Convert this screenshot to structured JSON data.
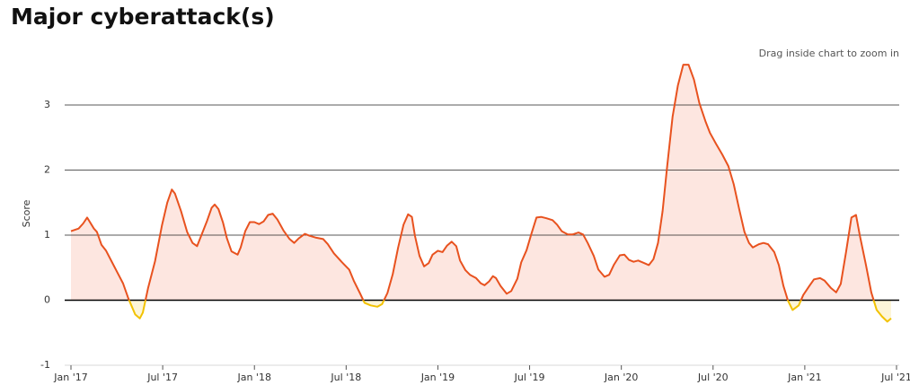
{
  "chart_data": {
    "type": "line",
    "title": "Major cyberattack(s)",
    "subtitle": "Drag inside chart to zoom in",
    "y_label": "Score",
    "color": "#e8521f",
    "negative_color": "#f2c200",
    "fill": "#fde6e0",
    "negative_fill": "#fdf5d8",
    "grid": true,
    "xlim": [
      0,
      54
    ],
    "ylim": [
      -1,
      3.8
    ],
    "xticks": [
      {
        "value": 0,
        "label": "Jan '17"
      },
      {
        "value": 6,
        "label": "Jul '17"
      },
      {
        "value": 12,
        "label": "Jan '18"
      },
      {
        "value": 18,
        "label": "Jul '18"
      },
      {
        "value": 24,
        "label": "Jan '19"
      },
      {
        "value": 30,
        "label": "Jul '19"
      },
      {
        "value": 36,
        "label": "Jan '20"
      },
      {
        "value": 42,
        "label": "Jul '20"
      },
      {
        "value": 48,
        "label": "Jan '21"
      },
      {
        "value": 54,
        "label": "Jul '21"
      }
    ],
    "yticks": [
      -1,
      0,
      1,
      2,
      3
    ],
    "x": [
      0,
      0.5,
      0.8,
      1.06,
      1.5,
      1.7,
      2,
      2.3,
      2.65,
      3,
      3.4,
      3.75,
      4.2,
      4.5,
      4.7,
      5.05,
      5.5,
      5.95,
      6.3,
      6.6,
      6.8,
      7.2,
      7.6,
      7.95,
      8.25,
      8.5,
      8.9,
      9.2,
      9.4,
      9.65,
      9.95,
      10.2,
      10.5,
      10.9,
      11.1,
      11.4,
      11.7,
      12,
      12.3,
      12.6,
      12.9,
      13.2,
      13.5,
      13.9,
      14.3,
      14.6,
      14.9,
      15.3,
      15.6,
      16.05,
      16.5,
      16.8,
      17.2,
      17.7,
      18.2,
      18.5,
      18.9,
      19.2,
      19.6,
      20.05,
      20.35,
      20.7,
      21.05,
      21.4,
      21.75,
      22.05,
      22.3,
      22.5,
      22.8,
      23.1,
      23.4,
      23.65,
      24,
      24.3,
      24.6,
      24.9,
      25.2,
      25.45,
      25.8,
      26.1,
      26.5,
      26.8,
      27.05,
      27.35,
      27.6,
      27.8,
      28.1,
      28.5,
      28.8,
      29.2,
      29.45,
      29.8,
      30.1,
      30.45,
      30.75,
      31.1,
      31.5,
      31.8,
      32.1,
      32.5,
      32.8,
      33.2,
      33.5,
      33.8,
      34.2,
      34.5,
      34.9,
      35.2,
      35.5,
      35.9,
      36.2,
      36.5,
      36.8,
      37.1,
      37.5,
      37.8,
      38.1,
      38.4,
      38.7,
      39,
      39.35,
      39.7,
      40.05,
      40.4,
      40.75,
      41.1,
      41.5,
      41.8,
      42.2,
      42.6,
      43,
      43.35,
      43.7,
      44.05,
      44.35,
      44.6,
      45,
      45.3,
      45.6,
      46,
      46.3,
      46.6,
      46.9,
      47.2,
      47.6,
      47.9,
      48.3,
      48.6,
      49,
      49.3,
      49.7,
      50.05,
      50.35,
      50.7,
      51.05,
      51.35,
      51.6,
      52,
      52.35,
      52.7,
      53.05,
      53.4,
      53.65
    ],
    "values": [
      1.06,
      1.1,
      1.18,
      1.27,
      1.1,
      1.05,
      0.85,
      0.76,
      0.6,
      0.44,
      0.26,
      0.03,
      -0.22,
      -0.28,
      -0.19,
      0.19,
      0.6,
      1.15,
      1.5,
      1.7,
      1.64,
      1.37,
      1.05,
      0.88,
      0.83,
      0.98,
      1.22,
      1.42,
      1.47,
      1.4,
      1.19,
      0.95,
      0.75,
      0.7,
      0.81,
      1.06,
      1.2,
      1.2,
      1.17,
      1.21,
      1.31,
      1.33,
      1.24,
      1.07,
      0.94,
      0.88,
      0.95,
      1.02,
      0.99,
      0.96,
      0.94,
      0.86,
      0.72,
      0.59,
      0.47,
      0.3,
      0.11,
      -0.04,
      -0.08,
      -0.1,
      -0.06,
      0.11,
      0.4,
      0.81,
      1.16,
      1.32,
      1.28,
      0.99,
      0.68,
      0.52,
      0.57,
      0.7,
      0.76,
      0.74,
      0.84,
      0.9,
      0.83,
      0.61,
      0.46,
      0.39,
      0.34,
      0.26,
      0.23,
      0.29,
      0.37,
      0.34,
      0.22,
      0.1,
      0.14,
      0.33,
      0.58,
      0.77,
      1.01,
      1.27,
      1.28,
      1.26,
      1.23,
      1.16,
      1.06,
      1.01,
      1.01,
      1.04,
      1.01,
      0.88,
      0.68,
      0.47,
      0.36,
      0.39,
      0.54,
      0.69,
      0.7,
      0.62,
      0.59,
      0.61,
      0.57,
      0.54,
      0.63,
      0.88,
      1.37,
      2.06,
      2.82,
      3.3,
      3.62,
      3.62,
      3.39,
      3.03,
      2.75,
      2.57,
      2.4,
      2.24,
      2.06,
      1.78,
      1.41,
      1.05,
      0.88,
      0.81,
      0.86,
      0.88,
      0.86,
      0.74,
      0.54,
      0.22,
      -0.01,
      -0.15,
      -0.08,
      0.08,
      0.22,
      0.32,
      0.34,
      0.3,
      0.19,
      0.12,
      0.25,
      0.74,
      1.27,
      1.31,
      0.99,
      0.54,
      0.12,
      -0.15,
      -0.25,
      -0.33,
      -0.28
    ]
  }
}
